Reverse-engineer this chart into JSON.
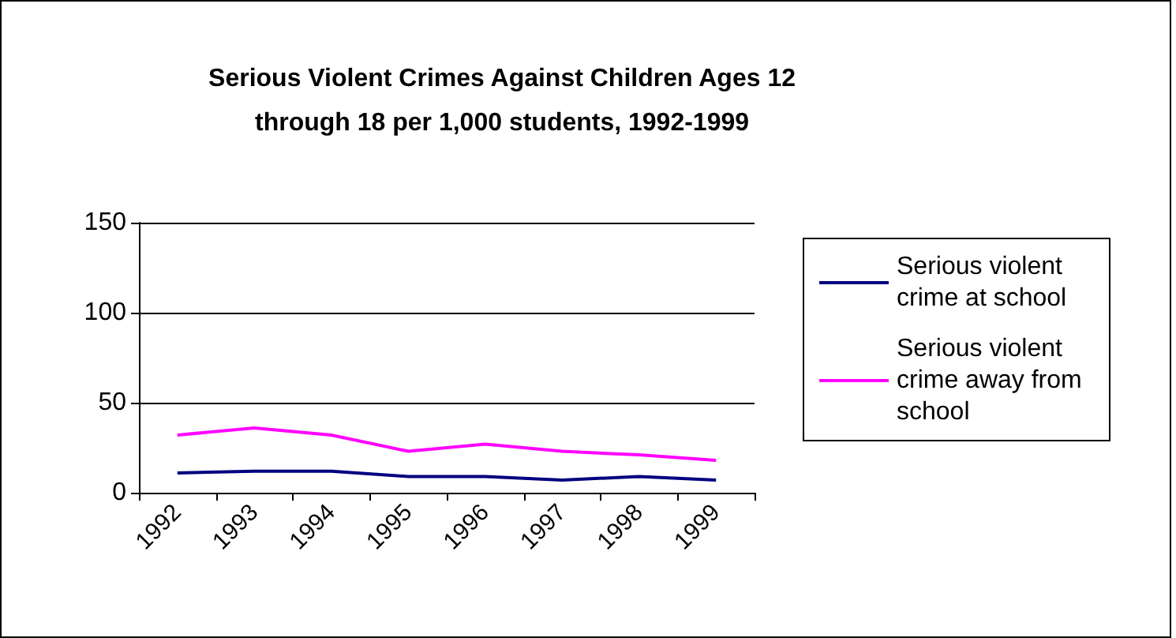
{
  "chart_data": {
    "type": "line",
    "title": "Serious Violent Crimes Against Children Ages 12\nthrough 18 per 1,000 students, 1992-1999",
    "categories": [
      "1992",
      "1993",
      "1994",
      "1995",
      "1996",
      "1997",
      "1998",
      "1999"
    ],
    "series": [
      {
        "name": "Serious violent crime at school",
        "color": "#000080",
        "values": [
          11,
          12,
          12,
          9,
          9,
          7,
          9,
          7
        ]
      },
      {
        "name": "Serious violent crime away from school",
        "color": "#ff00ff",
        "values": [
          32,
          36,
          32,
          23,
          27,
          23,
          21,
          18
        ]
      }
    ],
    "ylim": [
      0,
      150
    ],
    "yticks": [
      0,
      50,
      100,
      150
    ],
    "grid": "y",
    "legend": "right",
    "marker": "none",
    "line_style": "solid"
  }
}
